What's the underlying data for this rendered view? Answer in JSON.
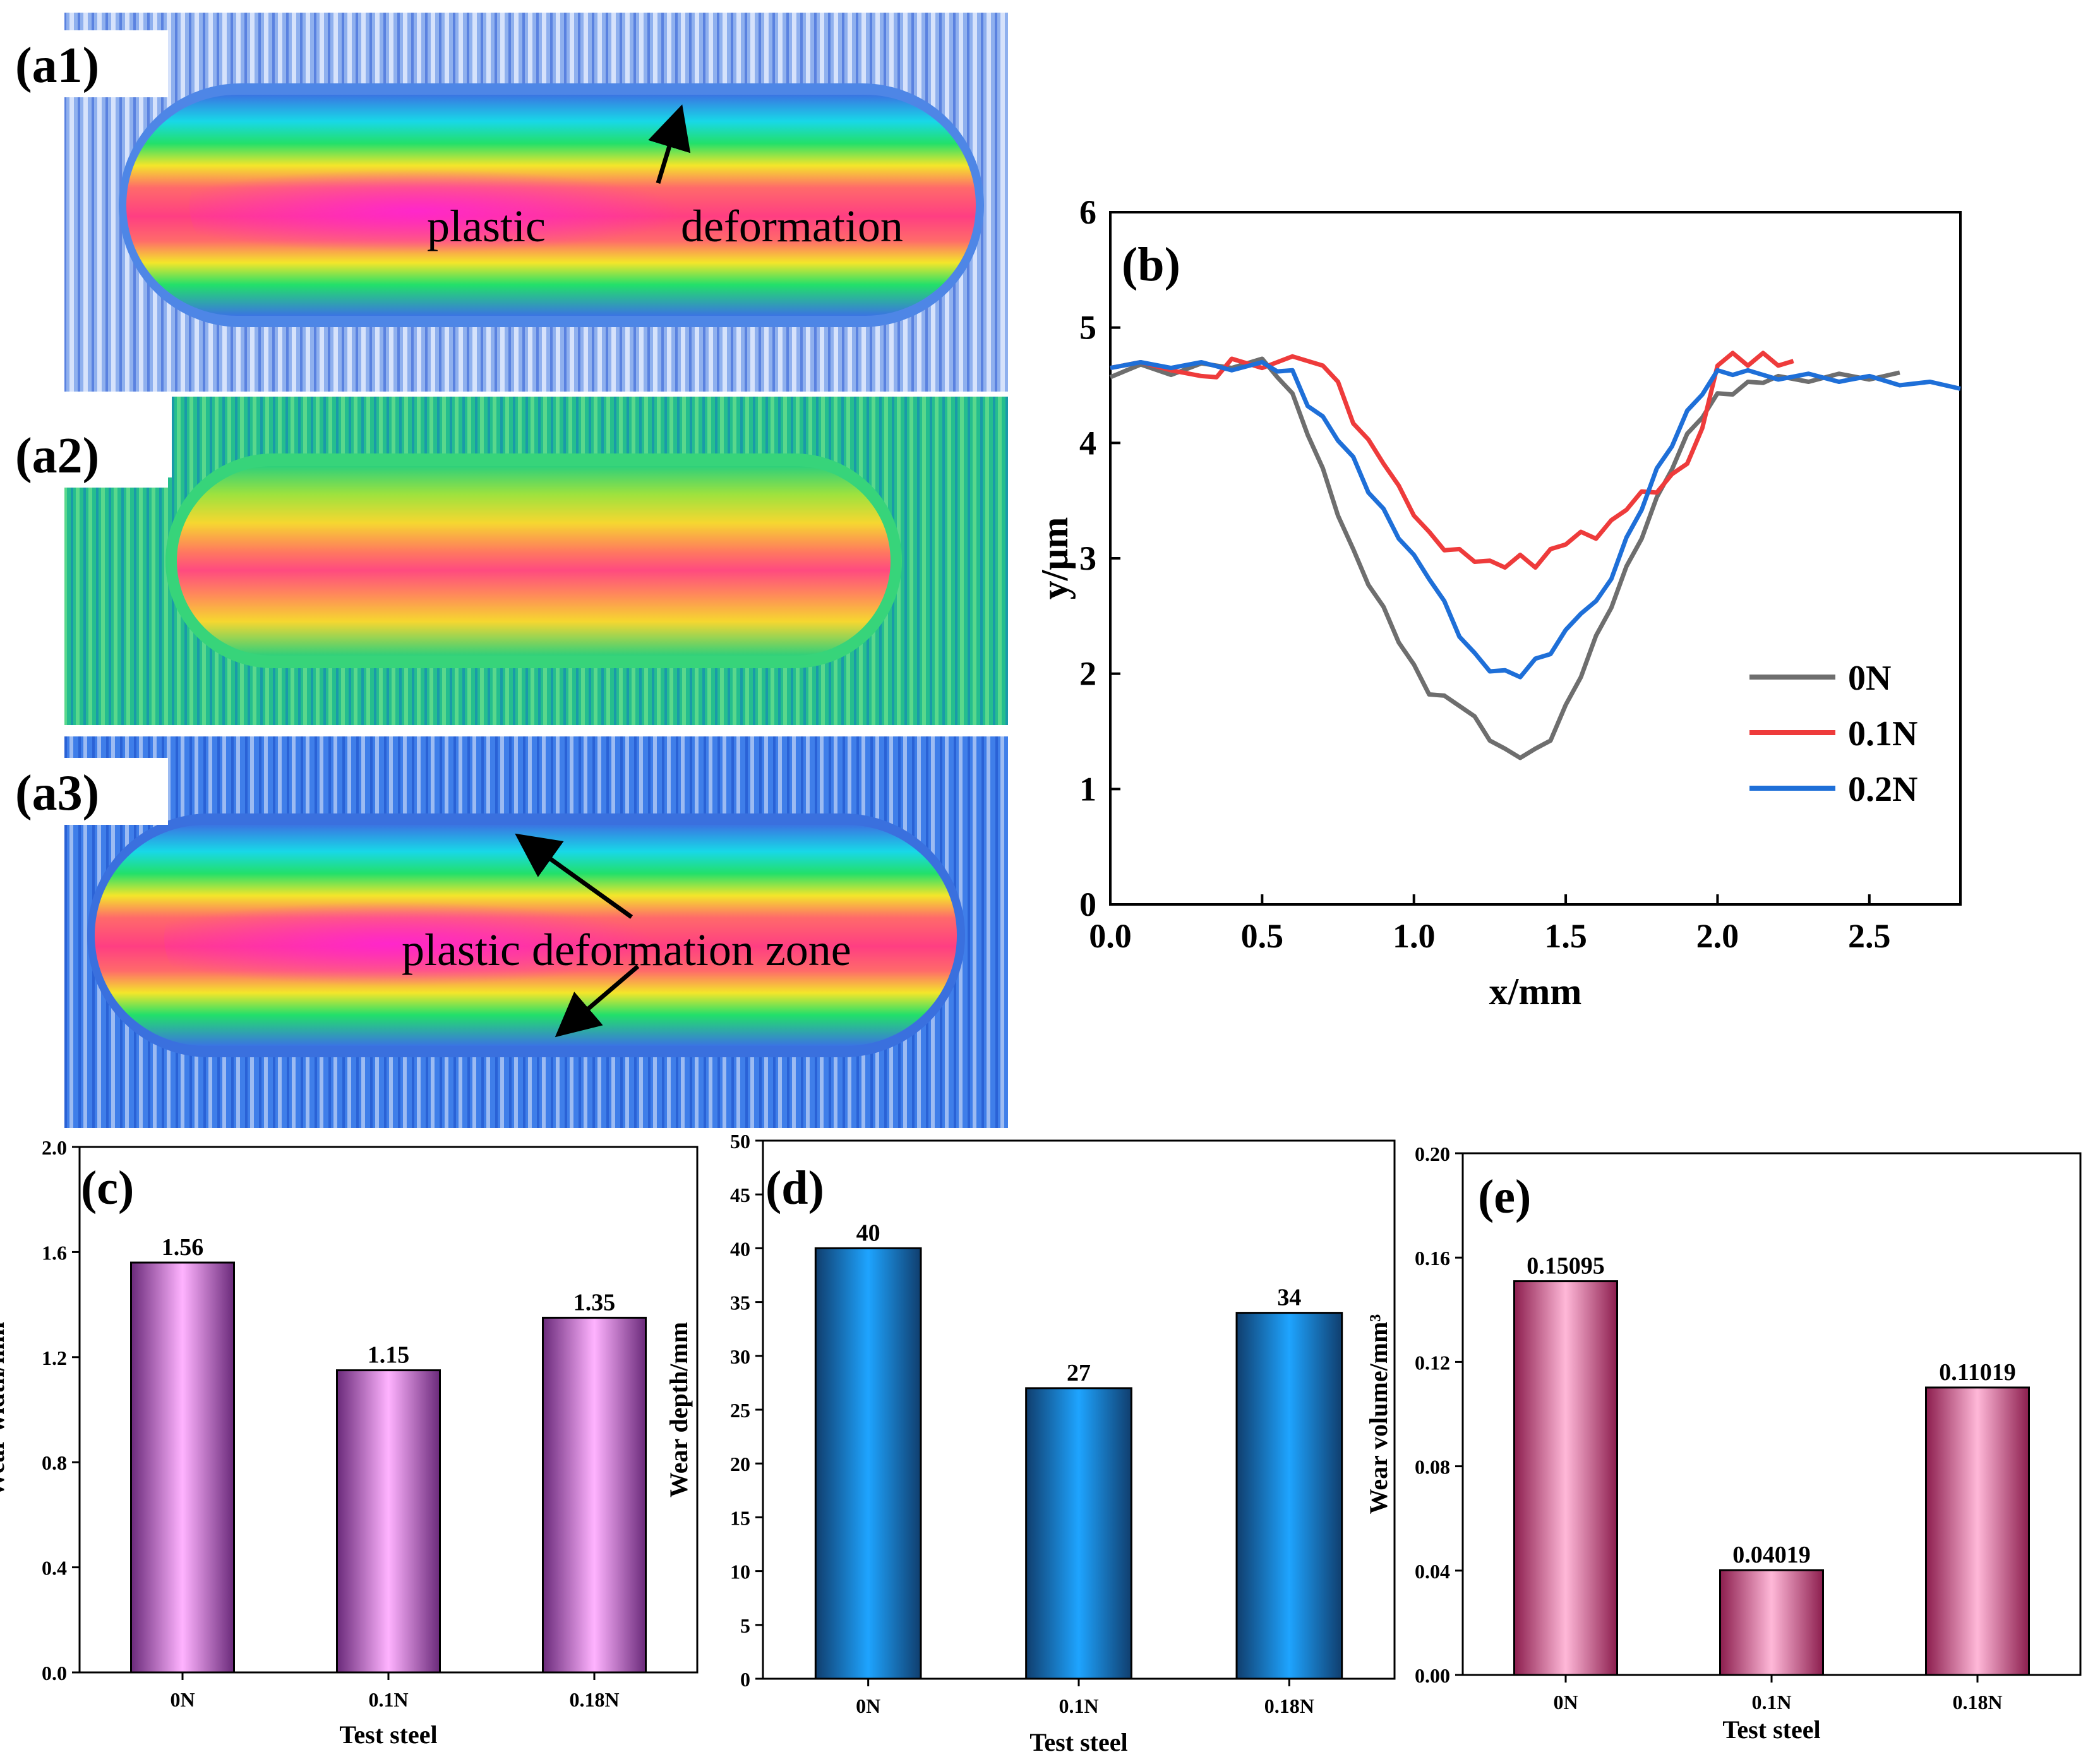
{
  "images": [
    {
      "label": "(a1)",
      "annotations": [
        "plastic",
        "deformation"
      ],
      "colors": {
        "bg": "#8aa8e8",
        "outer": "#2f6fe0",
        "mid": "#18e070",
        "inner": "#f7e22a",
        "core": "#ff2f7f"
      }
    },
    {
      "label": "(a2)",
      "annotations": [],
      "colors": {
        "bg": "#2ac28a",
        "outer": "#18e070",
        "mid": "#b4e63a",
        "inner": "#f7d030",
        "core": "#ff3f80"
      }
    },
    {
      "label": "(a3)",
      "annotations": [
        "plastic deformation zone"
      ],
      "colors": {
        "bg": "#3a78e8",
        "outer": "#2f6fe0",
        "mid": "#18e070",
        "inner": "#f7e22a",
        "core": "#ff2f7f"
      }
    }
  ],
  "chart_data": [
    {
      "panel": "(b)",
      "type": "line",
      "xlabel": "x/mm",
      "ylabel": "y/μm",
      "xlim": [
        0,
        2.8
      ],
      "ylim": [
        0,
        6
      ],
      "xticks": [
        "0.0",
        "0.5",
        "1.0",
        "1.5",
        "2.0",
        "2.5"
      ],
      "yticks": [
        "0",
        "1",
        "2",
        "3",
        "4",
        "5",
        "6"
      ],
      "series": [
        {
          "name": "0N",
          "color": "#6e6e6e",
          "x": [
            0.0,
            0.1,
            0.2,
            0.3,
            0.4,
            0.5,
            0.55,
            0.6,
            0.65,
            0.7,
            0.75,
            0.8,
            0.85,
            0.9,
            0.95,
            1.0,
            1.05,
            1.1,
            1.15,
            1.2,
            1.25,
            1.3,
            1.35,
            1.4,
            1.45,
            1.5,
            1.55,
            1.6,
            1.65,
            1.7,
            1.75,
            1.8,
            1.85,
            1.9,
            1.95,
            2.0,
            2.05,
            2.1,
            2.15,
            2.2,
            2.3,
            2.4,
            2.5,
            2.6
          ],
          "y": [
            4.6,
            4.65,
            4.62,
            4.66,
            4.68,
            4.7,
            4.6,
            4.4,
            4.1,
            3.75,
            3.4,
            3.05,
            2.8,
            2.55,
            2.3,
            2.05,
            1.85,
            1.78,
            1.75,
            1.6,
            1.45,
            1.32,
            1.3,
            1.32,
            1.45,
            1.7,
            2.0,
            2.3,
            2.6,
            2.9,
            3.2,
            3.5,
            3.8,
            4.05,
            4.25,
            4.4,
            4.45,
            4.5,
            4.55,
            4.55,
            4.56,
            4.57,
            4.58,
            4.58
          ]
        },
        {
          "name": "0.1N",
          "color": "#ee3b3b",
          "x": [
            0.0,
            0.1,
            0.2,
            0.3,
            0.35,
            0.4,
            0.5,
            0.6,
            0.7,
            0.75,
            0.8,
            0.85,
            0.9,
            0.95,
            1.0,
            1.05,
            1.1,
            1.15,
            1.2,
            1.25,
            1.3,
            1.35,
            1.4,
            1.45,
            1.5,
            1.55,
            1.6,
            1.65,
            1.7,
            1.75,
            1.8,
            1.85,
            1.9,
            1.95,
            2.0,
            2.05,
            2.1,
            2.15,
            2.2,
            2.25
          ],
          "y": [
            4.68,
            4.67,
            4.66,
            4.55,
            4.6,
            4.7,
            4.68,
            4.72,
            4.7,
            4.5,
            4.2,
            4.0,
            3.85,
            3.6,
            3.4,
            3.2,
            3.1,
            3.05,
            3.0,
            2.95,
            2.95,
            3.0,
            2.95,
            3.05,
            3.15,
            3.2,
            3.2,
            3.3,
            3.45,
            3.55,
            3.6,
            3.7,
            3.85,
            4.1,
            4.7,
            4.75,
            4.7,
            4.75,
            4.7,
            4.68
          ]
        },
        {
          "name": "0.2N",
          "color": "#1e6fd8",
          "x": [
            0.0,
            0.1,
            0.2,
            0.3,
            0.4,
            0.5,
            0.55,
            0.6,
            0.65,
            0.7,
            0.75,
            0.8,
            0.85,
            0.9,
            0.95,
            1.0,
            1.05,
            1.1,
            1.15,
            1.2,
            1.25,
            1.3,
            1.35,
            1.4,
            1.45,
            1.5,
            1.55,
            1.6,
            1.65,
            1.7,
            1.75,
            1.8,
            1.85,
            1.9,
            1.95,
            2.0,
            2.05,
            2.1,
            2.2,
            2.3,
            2.4,
            2.5,
            2.6,
            2.7,
            2.8
          ],
          "y": [
            4.68,
            4.67,
            4.68,
            4.67,
            4.66,
            4.67,
            4.65,
            4.6,
            4.35,
            4.2,
            4.05,
            3.85,
            3.6,
            3.4,
            3.2,
            3.0,
            2.85,
            2.6,
            2.35,
            2.15,
            2.05,
            2.0,
            2.0,
            2.1,
            2.2,
            2.35,
            2.55,
            2.6,
            2.85,
            3.15,
            3.45,
            3.75,
            4.0,
            4.25,
            4.45,
            4.6,
            4.62,
            4.6,
            4.58,
            4.57,
            4.56,
            4.55,
            4.53,
            4.5,
            4.5
          ]
        }
      ]
    },
    {
      "panel": "(c)",
      "type": "bar",
      "categories": [
        "0N",
        "0.1N",
        "0.18N"
      ],
      "values": [
        1.56,
        1.15,
        1.35
      ],
      "value_labels": [
        "1.56",
        "1.15",
        "1.35"
      ],
      "xlabel": "Test steel",
      "ylabel": "Wear width/mm",
      "ylim": [
        0,
        2.0
      ],
      "yticks": [
        "0.0",
        "0.4",
        "0.8",
        "1.2",
        "1.6",
        "2.0"
      ],
      "colors": {
        "edge": "#6a2a7a",
        "center": "#ffb3ff"
      }
    },
    {
      "panel": "(d)",
      "type": "bar",
      "categories": [
        "0N",
        "0.1N",
        "0.18N"
      ],
      "values": [
        40,
        27,
        34
      ],
      "value_labels": [
        "40",
        "27",
        "34"
      ],
      "xlabel": "Test steel",
      "ylabel": "Wear depth/mm",
      "ylim": [
        0,
        50
      ],
      "yticks": [
        "0",
        "5",
        "10",
        "15",
        "20",
        "25",
        "30",
        "35",
        "40",
        "45",
        "50"
      ],
      "colors": {
        "edge": "#103e6e",
        "center": "#1ea4ff"
      }
    },
    {
      "panel": "(e)",
      "type": "bar",
      "categories": [
        "0N",
        "0.1N",
        "0.18N"
      ],
      "values": [
        0.15095,
        0.04019,
        0.11019
      ],
      "value_labels": [
        "0.15095",
        "0.04019",
        "0.11019"
      ],
      "xlabel": "Test steel",
      "ylabel": "Wear volume/mm³",
      "ylim": [
        0,
        0.2
      ],
      "yticks": [
        "0.00",
        "0.04",
        "0.08",
        "0.12",
        "0.16",
        "0.20"
      ],
      "colors": {
        "edge": "#8c1e4e",
        "center": "#ffb8d8"
      }
    }
  ]
}
